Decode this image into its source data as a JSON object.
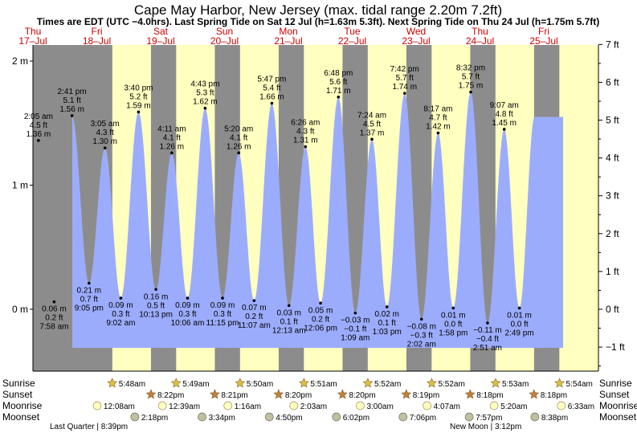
{
  "title": "Cape May Harbor, New Jersey (max. tidal range 2.20m 7.2ft)",
  "subtitle": "Times are EDT (UTC −4.0hrs). Last Spring Tide on Sat 12 Jul (h=1.63m 5.3ft). Next Spring Tide on Thu 24 Jul (h=1.75m 5.7ft)",
  "colors": {
    "night": "#8c8c8c",
    "day": "#ffffc0",
    "tide": "#9cacfc",
    "sun": "#e0c040",
    "sunset": "#c08040",
    "moonrise": "#ffffc0",
    "moonset": "#c0c0a0"
  },
  "chart_data": {
    "type": "area",
    "y_left_unit": "m",
    "y_right_unit": "ft",
    "y_left_ticks": [
      "2 m",
      "1 m",
      "0 m"
    ],
    "y_right_ticks": [
      "7 ft",
      "6 ft",
      "5 ft",
      "4 ft",
      "3 ft",
      "2 ft",
      "1 ft",
      "0 ft",
      "−1 ft"
    ],
    "days": [
      {
        "dow": "Thu",
        "date": "17–Jul"
      },
      {
        "dow": "Fri",
        "date": "18–Jul"
      },
      {
        "dow": "Sat",
        "date": "19–Jul"
      },
      {
        "dow": "Sun",
        "date": "20–Jul"
      },
      {
        "dow": "Mon",
        "date": "21–Jul"
      },
      {
        "dow": "Tue",
        "date": "22–Jul"
      },
      {
        "dow": "Wed",
        "date": "23–Jul"
      },
      {
        "dow": "Thu",
        "date": "24–Jul"
      },
      {
        "dow": "Fri",
        "date": "25–Jul"
      }
    ],
    "tides": [
      {
        "type": "high",
        "time": "2:05 am",
        "ft": "4.5 ft",
        "m": "1.36 m",
        "value_m": 1.36,
        "day": 0,
        "hour": 2.08
      },
      {
        "type": "low",
        "time": "7:58 am",
        "ft": "0.2 ft",
        "m": "0.06 m",
        "value_m": 0.06,
        "day": 0,
        "hour": 7.97
      },
      {
        "type": "high",
        "time": "2:41 pm",
        "ft": "5.1 ft",
        "m": "1.56 m",
        "value_m": 1.56,
        "day": 0,
        "hour": 14.68
      },
      {
        "type": "low",
        "time": "9:05 pm",
        "ft": "0.7 ft",
        "m": "0.21 m",
        "value_m": 0.21,
        "day": 0,
        "hour": 21.08
      },
      {
        "type": "high",
        "time": "3:05 am",
        "ft": "4.3 ft",
        "m": "1.30 m",
        "value_m": 1.3,
        "day": 1,
        "hour": 3.08
      },
      {
        "type": "low",
        "time": "9:02 am",
        "ft": "0.3 ft",
        "m": "0.09 m",
        "value_m": 0.09,
        "day": 1,
        "hour": 9.03
      },
      {
        "type": "high",
        "time": "3:40 pm",
        "ft": "5.2 ft",
        "m": "1.59 m",
        "value_m": 1.59,
        "day": 1,
        "hour": 15.67
      },
      {
        "type": "low",
        "time": "10:13 pm",
        "ft": "0.5 ft",
        "m": "0.16 m",
        "value_m": 0.16,
        "day": 1,
        "hour": 22.22
      },
      {
        "type": "high",
        "time": "4:11 am",
        "ft": "4.1 ft",
        "m": "1.26 m",
        "value_m": 1.26,
        "day": 2,
        "hour": 4.18
      },
      {
        "type": "low",
        "time": "10:06 am",
        "ft": "0.3 ft",
        "m": "0.09 m",
        "value_m": 0.09,
        "day": 2,
        "hour": 10.1
      },
      {
        "type": "high",
        "time": "4:43 pm",
        "ft": "5.3 ft",
        "m": "1.62 m",
        "value_m": 1.62,
        "day": 2,
        "hour": 16.72
      },
      {
        "type": "low",
        "time": "11:15 pm",
        "ft": "0.3 ft",
        "m": "0.09 m",
        "value_m": 0.09,
        "day": 2,
        "hour": 23.25
      },
      {
        "type": "high",
        "time": "5:20 am",
        "ft": "4.1 ft",
        "m": "1.26 m",
        "value_m": 1.26,
        "day": 3,
        "hour": 5.33
      },
      {
        "type": "low",
        "time": "11:07 am",
        "ft": "0.2 ft",
        "m": "0.07 m",
        "value_m": 0.07,
        "day": 3,
        "hour": 11.12
      },
      {
        "type": "high",
        "time": "5:47 pm",
        "ft": "5.4 ft",
        "m": "1.66 m",
        "value_m": 1.66,
        "day": 3,
        "hour": 17.78
      },
      {
        "type": "low",
        "time": "12:13 am",
        "ft": "0.1 ft",
        "m": "0.03 m",
        "value_m": 0.03,
        "day": 4,
        "hour": 0.22
      },
      {
        "type": "high",
        "time": "6:26 am",
        "ft": "4.3 ft",
        "m": "1.31 m",
        "value_m": 1.31,
        "day": 4,
        "hour": 6.43
      },
      {
        "type": "low",
        "time": "12:06 pm",
        "ft": "0.2 ft",
        "m": "0.05 m",
        "value_m": 0.05,
        "day": 4,
        "hour": 12.1
      },
      {
        "type": "high",
        "time": "6:48 pm",
        "ft": "5.6 ft",
        "m": "1.71 m",
        "value_m": 1.71,
        "day": 4,
        "hour": 18.8
      },
      {
        "type": "low",
        "time": "1:09 am",
        "ft": "−0.1 ft",
        "m": "−0.03 m",
        "value_m": -0.03,
        "day": 5,
        "hour": 1.15
      },
      {
        "type": "high",
        "time": "7:24 am",
        "ft": "4.5 ft",
        "m": "1.37 m",
        "value_m": 1.37,
        "day": 5,
        "hour": 7.4
      },
      {
        "type": "low",
        "time": "1:03 pm",
        "ft": "0.1 ft",
        "m": "0.02 m",
        "value_m": 0.02,
        "day": 5,
        "hour": 13.05
      },
      {
        "type": "high",
        "time": "7:42 pm",
        "ft": "5.7 ft",
        "m": "1.74 m",
        "value_m": 1.74,
        "day": 5,
        "hour": 19.7
      },
      {
        "type": "low",
        "time": "2:02 am",
        "ft": "−0.3 ft",
        "m": "−0.08 m",
        "value_m": -0.08,
        "day": 6,
        "hour": 2.03
      },
      {
        "type": "high",
        "time": "8:17 am",
        "ft": "4.7 ft",
        "m": "1.42 m",
        "value_m": 1.42,
        "day": 6,
        "hour": 8.28
      },
      {
        "type": "low",
        "time": "1:58 pm",
        "ft": "0.0 ft",
        "m": "0.01 m",
        "value_m": 0.01,
        "day": 6,
        "hour": 13.97
      },
      {
        "type": "high",
        "time": "8:32 pm",
        "ft": "5.7 ft",
        "m": "1.75 m",
        "value_m": 1.75,
        "day": 6,
        "hour": 20.53
      },
      {
        "type": "low",
        "time": "2:51 am",
        "ft": "−0.4 ft",
        "m": "−0.11 m",
        "value_m": -0.11,
        "day": 7,
        "hour": 2.85
      },
      {
        "type": "high",
        "time": "9:07 am",
        "ft": "4.8 ft",
        "m": "1.45 m",
        "value_m": 1.45,
        "day": 7,
        "hour": 9.12
      },
      {
        "type": "low",
        "time": "2:49 pm",
        "ft": "0.0 ft",
        "m": "0.01 m",
        "value_m": 0.01,
        "day": 7,
        "hour": 14.82
      }
    ]
  },
  "sunrise": {
    "label": "Sunrise",
    "times": [
      "5:48am",
      "5:49am",
      "5:50am",
      "5:51am",
      "5:52am",
      "5:52am",
      "5:53am",
      "5:54am"
    ]
  },
  "sunset": {
    "label": "Sunset",
    "times": [
      "8:22pm",
      "8:21pm",
      "8:20pm",
      "8:20pm",
      "8:19pm",
      "8:18pm",
      "8:18pm"
    ]
  },
  "moonrise": {
    "label": "Moonrise",
    "times": [
      "12:08am",
      "12:39am",
      "1:16am",
      "2:03am",
      "3:00am",
      "4:07am",
      "5:20am",
      "6:33am"
    ]
  },
  "moonset": {
    "label": "Moonset",
    "times": [
      "2:18pm",
      "3:34pm",
      "4:50pm",
      "6:02pm",
      "7:06pm",
      "7:57pm",
      "8:38pm"
    ]
  },
  "moon_phases": [
    {
      "label": "Last Quarter | 8:39pm"
    },
    {
      "label": "New Moon | 3:12pm"
    }
  ]
}
